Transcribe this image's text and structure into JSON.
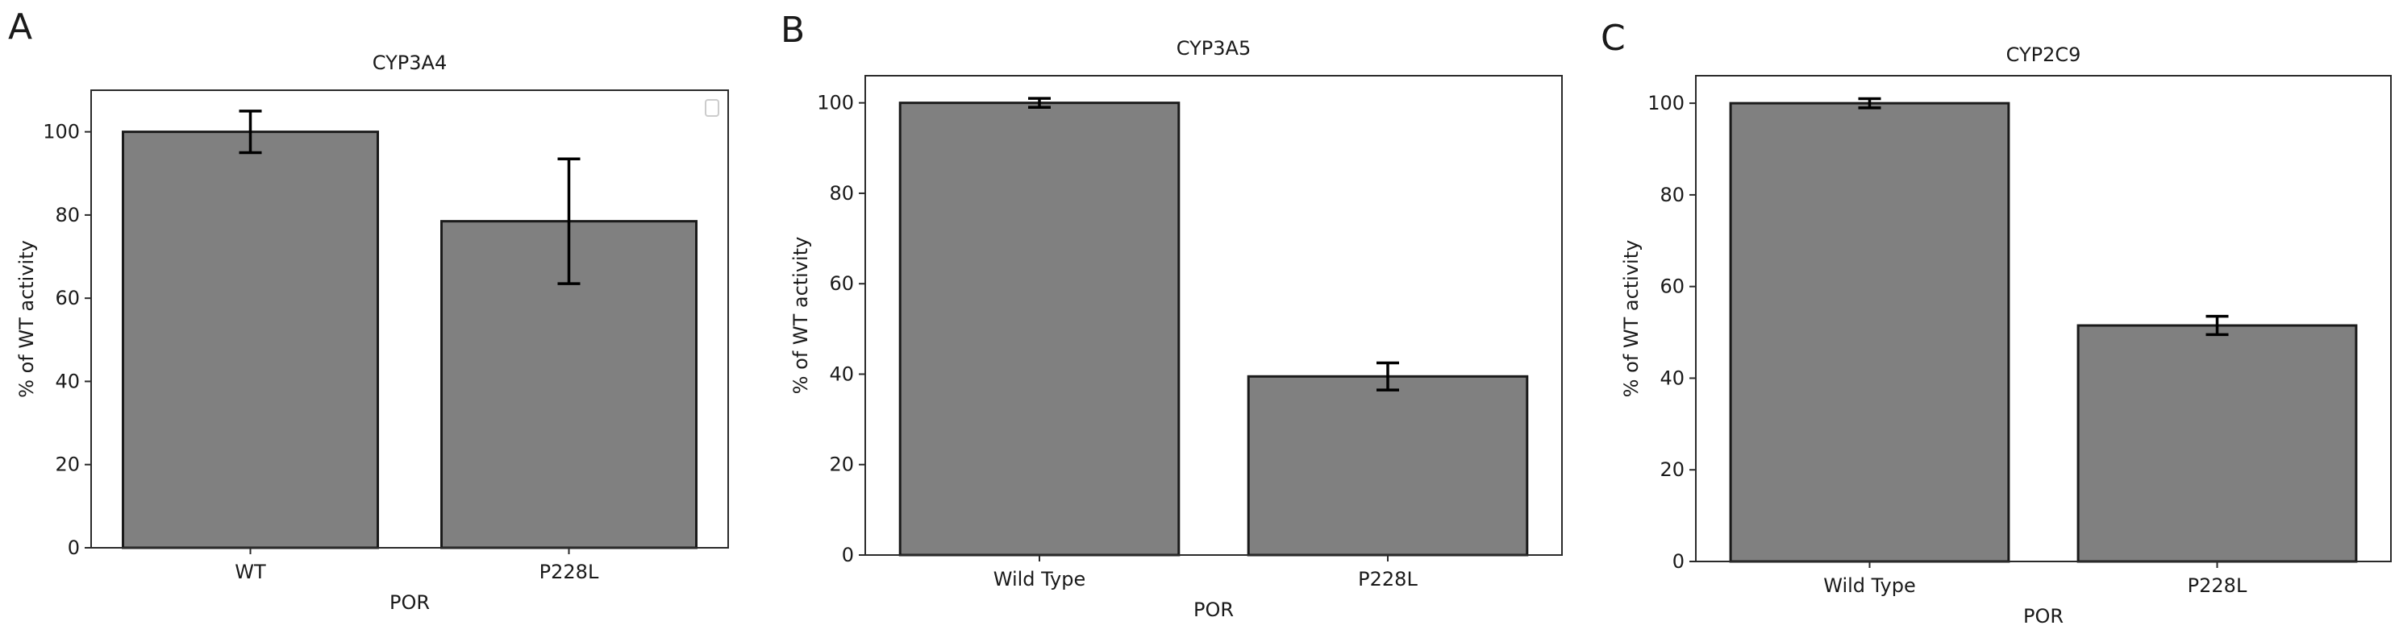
{
  "chart_data": [
    {
      "type": "bar",
      "panel_label": "A",
      "title": "CYP3A4",
      "xlabel": "POR",
      "ylabel": "% of WT activity",
      "categories": [
        "WT",
        "P228L"
      ],
      "values": [
        100,
        78.5
      ],
      "errors": [
        5,
        15
      ],
      "ylim": [
        0,
        110
      ],
      "yticks": [
        0,
        20,
        40,
        60,
        80,
        100
      ],
      "bar_color": "#808080",
      "grid": false,
      "empty_legend": true
    },
    {
      "type": "bar",
      "panel_label": "B",
      "title": "CYP3A5",
      "xlabel": "POR",
      "ylabel": "% of WT activity",
      "categories": [
        "Wild Type",
        "P228L"
      ],
      "values": [
        100,
        39.5
      ],
      "errors": [
        1,
        3
      ],
      "ylim": [
        0,
        106
      ],
      "yticks": [
        0,
        20,
        40,
        60,
        80,
        100
      ],
      "bar_color": "#808080",
      "grid": false,
      "empty_legend": false
    },
    {
      "type": "bar",
      "panel_label": "C",
      "title": "CYP2C9",
      "xlabel": "POR",
      "ylabel": "% of WT activity",
      "categories": [
        "Wild Type",
        "P228L"
      ],
      "values": [
        100,
        51.5
      ],
      "errors": [
        1,
        2
      ],
      "ylim": [
        0,
        106
      ],
      "yticks": [
        0,
        20,
        40,
        60,
        80,
        100
      ],
      "bar_color": "#808080",
      "grid": false,
      "empty_legend": false
    }
  ]
}
